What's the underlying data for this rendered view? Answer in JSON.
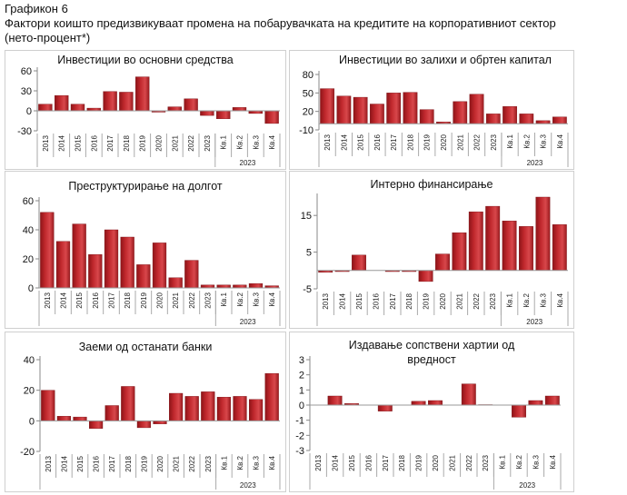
{
  "header": {
    "figure_label": "Графикон 6",
    "title_line1": "Фактори коишто предизвикуваат промена на побарувачката на кредитите на корпоративниот сектор",
    "title_line2": "(нето-процент*)"
  },
  "bar_color": "#c0282d",
  "chart_data": [
    {
      "type": "bar",
      "title": "Инвестиции во основни средства",
      "categories": [
        "2013",
        "2014",
        "2015",
        "2016",
        "2017",
        "2018",
        "2019",
        "2020",
        "2021",
        "2022",
        "2023",
        "Кв.1",
        "Кв.2",
        "Кв.3",
        "Кв.4"
      ],
      "group_label": "2023",
      "values": [
        10,
        23,
        10,
        4,
        29,
        28,
        51,
        -2,
        6,
        18,
        -7,
        -12,
        5,
        -4,
        -19
      ],
      "ylim": [
        -30,
        60
      ],
      "yticks": [
        -30,
        0,
        30,
        60
      ]
    },
    {
      "type": "bar",
      "title": "Инвестиции во залихи и обртен капитал",
      "categories": [
        "2013",
        "2014",
        "2015",
        "2016",
        "2017",
        "2018",
        "2019",
        "2020",
        "2021",
        "2022",
        "2023",
        "Кв.1",
        "Кв.2",
        "Кв.3",
        "Кв.4"
      ],
      "group_label": "2023",
      "values": [
        57,
        45,
        43,
        32,
        50,
        51,
        23,
        3,
        36,
        48,
        16,
        28,
        16,
        5,
        11
      ],
      "ylim": [
        -10,
        80
      ],
      "yticks": [
        -10,
        20,
        50,
        80
      ]
    },
    {
      "type": "bar",
      "title": "Преструктурирање на долгот",
      "categories": [
        "2013",
        "2014",
        "2015",
        "2016",
        "2017",
        "2018",
        "2019",
        "2020",
        "2021",
        "2022",
        "2023",
        "Кв.1",
        "Кв.2",
        "Кв.3",
        "Кв.4"
      ],
      "group_label": "2023",
      "values": [
        52,
        32,
        44,
        23,
        40,
        35,
        16,
        31,
        7,
        19,
        2,
        2,
        2,
        3,
        1.5
      ],
      "ylim": [
        0,
        60
      ],
      "yticks": [
        0,
        20,
        40,
        60
      ]
    },
    {
      "type": "bar",
      "title": "Интерно финансирање",
      "categories": [
        "2013",
        "2014",
        "2015",
        "2016",
        "2017",
        "2018",
        "2019",
        "2020",
        "2021",
        "2022",
        "2023",
        "Кв.1",
        "Кв.2",
        "Кв.3",
        "Кв.4"
      ],
      "group_label": "2023",
      "values": [
        -0.5,
        -0.3,
        4.2,
        0,
        -0.3,
        -0.3,
        -3,
        4.5,
        10.3,
        16,
        17.5,
        13.5,
        12,
        20,
        12.5
      ],
      "ylim": [
        -5,
        20
      ],
      "yticks": [
        -5,
        5,
        15
      ]
    },
    {
      "type": "bar",
      "title": "Заеми од останати банки",
      "categories": [
        "2013",
        "2014",
        "2015",
        "2016",
        "2017",
        "2018",
        "2019",
        "2020",
        "2021",
        "2022",
        "2023",
        "Кв.1",
        "Кв.2",
        "Кв.3",
        "Кв.4"
      ],
      "group_label": "2023",
      "values": [
        20,
        3,
        2.5,
        -5,
        10,
        22.5,
        -4.5,
        -2,
        18,
        16,
        19,
        15.5,
        16,
        14,
        31
      ],
      "ylim": [
        -20,
        40
      ],
      "yticks": [
        -20,
        0,
        20,
        40
      ]
    },
    {
      "type": "bar",
      "title": "Издавање сопствени хартии од вредност",
      "categories": [
        "2013",
        "2014",
        "2015",
        "2016",
        "2017",
        "2018",
        "2019",
        "2020",
        "2021",
        "2022",
        "2023",
        "Кв.1",
        "Кв.2",
        "Кв.3",
        "Кв.4"
      ],
      "group_label": "2023",
      "values": [
        0,
        0.6,
        0.1,
        0,
        -0.4,
        0,
        0.25,
        0.3,
        0,
        1.4,
        0.03,
        0,
        -0.8,
        0.3,
        0.6
      ],
      "ylim": [
        -3,
        3
      ],
      "yticks": [
        -3,
        -2,
        -1,
        0,
        1,
        2,
        3
      ]
    }
  ]
}
